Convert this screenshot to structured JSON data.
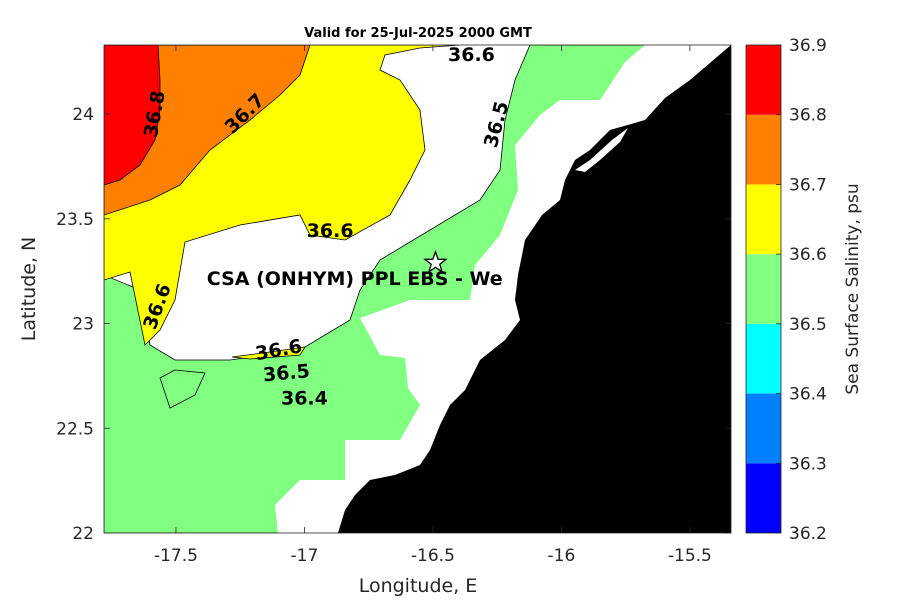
{
  "chart_data": {
    "type": "heatmap",
    "title": "Valid for 25-Jul-2025 2000 GMT",
    "xlabel": "Longitude, E",
    "ylabel": "Latitude, N",
    "xlim": [
      -17.78,
      -15.34
    ],
    "ylim": [
      22.0,
      24.33
    ],
    "x_ticks": [
      -17.5,
      -17,
      -16.5,
      -16,
      -15.5
    ],
    "x_tick_labels": [
      "-17.5",
      "-17",
      "-16.5",
      "-16",
      "-15.5"
    ],
    "y_ticks": [
      22,
      22.5,
      23,
      23.5,
      24
    ],
    "y_tick_labels": [
      "22",
      "22.5",
      "23",
      "23.5",
      "24"
    ],
    "colorbar": {
      "label": "Sea Surface Salinity, psu",
      "levels": [
        36.2,
        36.3,
        36.4,
        36.5,
        36.6,
        36.7,
        36.8,
        36.9
      ],
      "level_labels": [
        "36.2",
        "36.3",
        "36.4",
        "36.5",
        "36.6",
        "36.7",
        "36.8",
        "36.9"
      ],
      "colors": [
        "#0000ff",
        "#0080ff",
        "#00ffff",
        "#80ff80",
        "#ffff00",
        "#ff8000",
        "#ff0000"
      ]
    },
    "contour_labels": [
      {
        "text": "36.8",
        "x": -17.58,
        "y": 24.0,
        "angle": -80
      },
      {
        "text": "36.7",
        "x": -17.23,
        "y": 24.0,
        "angle": -45
      },
      {
        "text": "36.6",
        "x": -16.35,
        "y": 24.28,
        "angle": 0
      },
      {
        "text": "36.5",
        "x": -16.25,
        "y": 23.95,
        "angle": -75
      },
      {
        "text": "36.6",
        "x": -16.9,
        "y": 23.44,
        "angle": 0
      },
      {
        "text": "36.6",
        "x": -17.57,
        "y": 23.08,
        "angle": -70
      },
      {
        "text": "36.6",
        "x": -17.1,
        "y": 22.87,
        "angle": -10
      },
      {
        "text": "36.5",
        "x": -17.07,
        "y": 22.76,
        "angle": -5
      },
      {
        "text": "36.4",
        "x": -17.0,
        "y": 22.64,
        "angle": 0
      }
    ],
    "site": {
      "label": "CSA (ONHYM) PPL EBS  - We",
      "x": -16.49,
      "y": 23.29,
      "marker": "star"
    },
    "land_color": "#000000",
    "nodata_color": "#ffffff"
  }
}
